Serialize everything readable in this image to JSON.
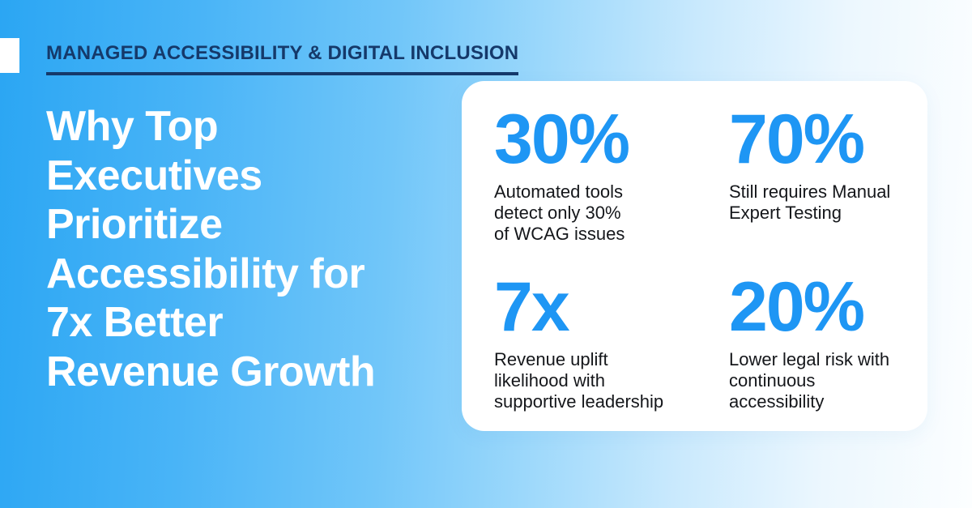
{
  "meta": {
    "title": "Why Top Executives Prioritize Accessibility for 7x Better Revenue Growth"
  },
  "colors": {
    "background_left": "#2ba6f3",
    "background_right": "#fcfeff",
    "navy": "#15396a",
    "stat_blue": "#1e96f4",
    "card_bg": "#ffffff",
    "headline_text": "#ffffff",
    "description_text": "#15171b"
  },
  "eyebrow": {
    "label": "MANAGED ACCESSIBILITY & DIGITAL INCLUSION"
  },
  "headline": {
    "full_text": "Why Top Executives Prioritize Accessibility for 7x Better Revenue Growth",
    "lines": [
      "Why Top",
      "Executives",
      "Prioritize",
      "Accessibility for",
      "7x Better",
      "Revenue Growth"
    ]
  },
  "stats": [
    {
      "value": "30%",
      "description": "Automated tools detect only 30% of WCAG issues",
      "lines": [
        "Automated tools",
        "detect only 30%",
        "of WCAG issues"
      ]
    },
    {
      "value": "70%",
      "description": "Still requires Manual Expert Testing",
      "lines": [
        "Still requires Manual",
        "Expert Testing"
      ]
    },
    {
      "value": "7x",
      "description": "Revenue uplift likelihood with supportive leadership",
      "lines": [
        "Revenue uplift",
        "likelihood with",
        "supportive leadership"
      ]
    },
    {
      "value": "20%",
      "description": "Lower legal risk with continuous accessibility",
      "lines": [
        "Lower legal risk with",
        "continuous",
        "accessibility"
      ]
    }
  ]
}
